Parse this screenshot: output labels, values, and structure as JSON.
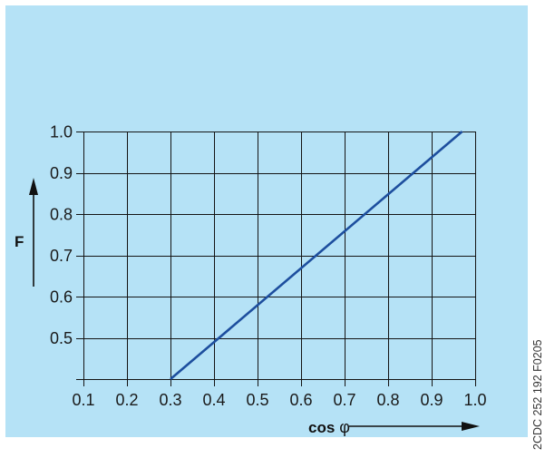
{
  "figure": {
    "code": "2CDC 252 192 F0205",
    "colors": {
      "panel": "#b5e2f6",
      "grid": "#141414",
      "line": "#1d4e9e",
      "arrow": "#111111"
    }
  },
  "chart_data": {
    "type": "line",
    "title": "",
    "xlabel": "cos φ",
    "ylabel": "F",
    "xlim": [
      0.1,
      1.0
    ],
    "ylim": [
      0.4,
      1.0
    ],
    "x_ticks": [
      "0.1",
      "0.2",
      "0.3",
      "0.4",
      "0.5",
      "0.6",
      "0.7",
      "0.8",
      "0.9",
      "1.0"
    ],
    "y_ticks": [
      "0.5",
      "0.6",
      "0.7",
      "0.8",
      "0.9",
      "1.0"
    ],
    "grid": true,
    "legend": "none",
    "series": [
      {
        "x": [
          0.3,
          0.97
        ],
        "y": [
          0.4,
          1.0
        ],
        "color": "#1d4e9e"
      }
    ]
  }
}
